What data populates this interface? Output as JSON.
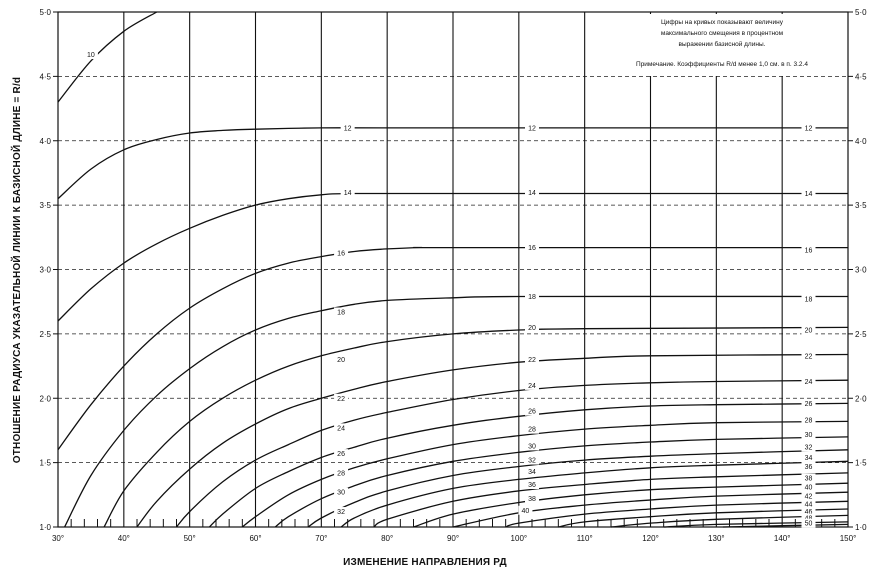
{
  "chart_data": {
    "type": "line",
    "xlabel": "ИЗМЕНЕНИЕ НАПРАВЛЕНИЯ РД",
    "ylabel": "ОТНОШЕНИЕ РАДИУСА УКАЗАТЕЛЬНОЙ ЛИНИИ К БАЗИСНОЙ ДЛИНЕ = R/d",
    "xlim": [
      30,
      150
    ],
    "ylim": [
      1.0,
      5.0
    ],
    "x_ticks": [
      30,
      40,
      50,
      60,
      70,
      80,
      90,
      100,
      110,
      120,
      130,
      140,
      150
    ],
    "x_tick_labels": [
      "30°",
      "40°",
      "50°",
      "60°",
      "70°",
      "80°",
      "90°",
      "100°",
      "110°",
      "120°",
      "130°",
      "140°",
      "150°"
    ],
    "y_ticks": [
      1.0,
      1.5,
      2.0,
      2.5,
      3.0,
      3.5,
      4.0,
      4.5,
      5.0
    ],
    "y_tick_labels_left": [
      "1·0",
      "1·5",
      "2·0",
      "2·5",
      "3·0",
      "3·5",
      "4·0",
      "4·5",
      "5·0"
    ],
    "y_tick_labels_right": [
      "1·0",
      "1·5",
      "2·0",
      "2·5",
      "3·0",
      "3·5",
      "4·0",
      "4·5",
      "5·0"
    ],
    "grid": true,
    "notes": [
      "Цифры на кривых показывают величину",
      "максимального смещения в процентном",
      "выражении базисной длины.",
      "Примечание. Коэффициенты R/d менее 1,0 см. в п. 3.2.4"
    ],
    "series": [
      {
        "name": "10",
        "x": [
          30,
          35,
          40,
          45
        ],
        "y": [
          4.3,
          4.62,
          4.85,
          5.0
        ],
        "labels": [
          {
            "x": 35,
            "y": 4.67
          }
        ]
      },
      {
        "name": "12",
        "x": [
          30,
          35,
          40,
          45,
          50,
          55,
          60,
          70,
          80,
          100,
          120,
          150
        ],
        "y": [
          3.55,
          3.78,
          3.93,
          4.01,
          4.06,
          4.08,
          4.09,
          4.1,
          4.1,
          4.1,
          4.1,
          4.1
        ],
        "labels": [
          {
            "x": 74,
            "y": 4.1
          },
          {
            "x": 102,
            "y": 4.1
          },
          {
            "x": 144,
            "y": 4.1
          }
        ]
      },
      {
        "name": "14",
        "x": [
          30,
          35,
          40,
          45,
          50,
          55,
          60,
          65,
          70,
          75,
          100,
          150
        ],
        "y": [
          2.6,
          2.85,
          3.05,
          3.2,
          3.32,
          3.42,
          3.5,
          3.55,
          3.58,
          3.59,
          3.59,
          3.59
        ],
        "labels": [
          {
            "x": 74,
            "y": 3.6
          },
          {
            "x": 102,
            "y": 3.6
          },
          {
            "x": 144,
            "y": 3.59
          }
        ]
      },
      {
        "name": "16",
        "x": [
          30,
          35,
          40,
          45,
          50,
          55,
          60,
          65,
          70,
          75,
          80,
          85,
          90,
          150
        ],
        "y": [
          1.6,
          1.95,
          2.25,
          2.5,
          2.7,
          2.85,
          2.97,
          3.05,
          3.1,
          3.14,
          3.16,
          3.17,
          3.17,
          3.17
        ],
        "labels": [
          {
            "x": 73,
            "y": 3.13
          },
          {
            "x": 102,
            "y": 3.17
          },
          {
            "x": 144,
            "y": 3.15
          }
        ]
      },
      {
        "name": "18",
        "x": [
          31,
          35,
          40,
          45,
          50,
          55,
          60,
          65,
          70,
          75,
          80,
          90,
          100,
          150
        ],
        "y": [
          1.0,
          1.4,
          1.75,
          2.02,
          2.23,
          2.4,
          2.53,
          2.62,
          2.68,
          2.73,
          2.76,
          2.78,
          2.79,
          2.79
        ],
        "labels": [
          {
            "x": 73,
            "y": 2.67
          },
          {
            "x": 102,
            "y": 2.79
          },
          {
            "x": 144,
            "y": 2.77
          }
        ]
      },
      {
        "name": "20",
        "x": [
          37,
          40,
          45,
          50,
          55,
          60,
          65,
          70,
          75,
          80,
          90,
          100,
          110,
          150
        ],
        "y": [
          1.0,
          1.28,
          1.58,
          1.82,
          2.0,
          2.14,
          2.25,
          2.33,
          2.39,
          2.44,
          2.5,
          2.53,
          2.54,
          2.55
        ],
        "labels": [
          {
            "x": 73,
            "y": 2.3
          },
          {
            "x": 102,
            "y": 2.55
          },
          {
            "x": 144,
            "y": 2.53
          }
        ]
      },
      {
        "name": "22",
        "x": [
          42,
          45,
          50,
          55,
          60,
          65,
          70,
          75,
          80,
          90,
          100,
          110,
          120,
          150
        ],
        "y": [
          1.0,
          1.2,
          1.45,
          1.65,
          1.8,
          1.92,
          2.0,
          2.07,
          2.13,
          2.22,
          2.28,
          2.31,
          2.33,
          2.34
        ],
        "labels": [
          {
            "x": 73,
            "y": 2.0
          },
          {
            "x": 102,
            "y": 2.3
          },
          {
            "x": 144,
            "y": 2.33
          }
        ]
      },
      {
        "name": "24",
        "x": [
          48,
          50,
          55,
          60,
          65,
          70,
          75,
          80,
          90,
          100,
          110,
          120,
          130,
          150
        ],
        "y": [
          1.0,
          1.12,
          1.35,
          1.52,
          1.64,
          1.75,
          1.83,
          1.89,
          1.99,
          2.06,
          2.1,
          2.12,
          2.13,
          2.14
        ],
        "labels": [
          {
            "x": 73,
            "y": 1.77
          },
          {
            "x": 102,
            "y": 2.1
          },
          {
            "x": 144,
            "y": 2.13
          }
        ]
      },
      {
        "name": "26",
        "x": [
          53,
          55,
          60,
          65,
          70,
          75,
          80,
          90,
          100,
          110,
          120,
          130,
          150
        ],
        "y": [
          1.0,
          1.1,
          1.3,
          1.43,
          1.54,
          1.62,
          1.69,
          1.79,
          1.86,
          1.91,
          1.94,
          1.95,
          1.96
        ],
        "labels": [
          {
            "x": 73,
            "y": 1.57
          },
          {
            "x": 102,
            "y": 1.9
          },
          {
            "x": 144,
            "y": 1.96
          }
        ]
      },
      {
        "name": "28",
        "x": [
          58,
          60,
          65,
          70,
          75,
          80,
          90,
          100,
          110,
          120,
          130,
          150
        ],
        "y": [
          1.0,
          1.08,
          1.25,
          1.37,
          1.46,
          1.53,
          1.64,
          1.71,
          1.76,
          1.79,
          1.81,
          1.82
        ],
        "labels": [
          {
            "x": 73,
            "y": 1.42
          },
          {
            "x": 102,
            "y": 1.76
          },
          {
            "x": 144,
            "y": 1.83
          }
        ]
      },
      {
        "name": "30",
        "x": [
          63,
          65,
          70,
          75,
          80,
          90,
          100,
          110,
          120,
          130,
          150
        ],
        "y": [
          1.0,
          1.08,
          1.22,
          1.32,
          1.4,
          1.51,
          1.58,
          1.63,
          1.66,
          1.68,
          1.7
        ],
        "labels": [
          {
            "x": 73,
            "y": 1.27
          },
          {
            "x": 102,
            "y": 1.63
          },
          {
            "x": 144,
            "y": 1.72
          }
        ]
      },
      {
        "name": "32",
        "x": [
          68,
          70,
          75,
          80,
          90,
          100,
          110,
          120,
          130,
          150
        ],
        "y": [
          1.0,
          1.07,
          1.19,
          1.28,
          1.4,
          1.47,
          1.52,
          1.55,
          1.57,
          1.6
        ],
        "labels": [
          {
            "x": 73,
            "y": 1.12
          },
          {
            "x": 102,
            "y": 1.52
          },
          {
            "x": 144,
            "y": 1.62
          }
        ]
      },
      {
        "name": "34",
        "x": [
          73,
          75,
          80,
          90,
          100,
          110,
          120,
          130,
          150
        ],
        "y": [
          1.0,
          1.07,
          1.17,
          1.3,
          1.37,
          1.42,
          1.46,
          1.48,
          1.51
        ],
        "labels": [
          {
            "x": 102,
            "y": 1.43
          },
          {
            "x": 144,
            "y": 1.54
          }
        ]
      },
      {
        "name": "36",
        "x": [
          78,
          80,
          90,
          100,
          110,
          120,
          130,
          150
        ],
        "y": [
          1.0,
          1.06,
          1.2,
          1.28,
          1.33,
          1.37,
          1.39,
          1.42
        ],
        "labels": [
          {
            "x": 102,
            "y": 1.33
          },
          {
            "x": 144,
            "y": 1.47
          }
        ]
      },
      {
        "name": "38",
        "x": [
          84,
          90,
          100,
          110,
          120,
          130,
          150
        ],
        "y": [
          1.0,
          1.1,
          1.19,
          1.25,
          1.29,
          1.31,
          1.34
        ],
        "labels": [
          {
            "x": 102,
            "y": 1.22
          },
          {
            "x": 144,
            "y": 1.38
          }
        ]
      },
      {
        "name": "40",
        "x": [
          90,
          100,
          110,
          120,
          130,
          150
        ],
        "y": [
          1.0,
          1.11,
          1.17,
          1.21,
          1.24,
          1.27
        ],
        "labels": [
          {
            "x": 101,
            "y": 1.13
          },
          {
            "x": 144,
            "y": 1.31
          }
        ]
      },
      {
        "name": "42",
        "x": [
          98,
          100,
          110,
          120,
          130,
          150
        ],
        "y": [
          1.0,
          1.03,
          1.1,
          1.14,
          1.17,
          1.2
        ],
        "labels": [
          {
            "x": 144,
            "y": 1.24
          }
        ]
      },
      {
        "name": "44",
        "x": [
          106,
          110,
          120,
          130,
          150
        ],
        "y": [
          1.0,
          1.04,
          1.08,
          1.11,
          1.14
        ],
        "labels": [
          {
            "x": 144,
            "y": 1.18
          }
        ]
      },
      {
        "name": "46",
        "x": [
          114,
          120,
          130,
          150
        ],
        "y": [
          1.0,
          1.03,
          1.06,
          1.09
        ],
        "labels": [
          {
            "x": 144,
            "y": 1.12
          }
        ]
      },
      {
        "name": "48",
        "x": [
          122,
          130,
          150
        ],
        "y": [
          1.0,
          1.02,
          1.04
        ],
        "labels": [
          {
            "x": 144,
            "y": 1.07
          }
        ]
      },
      {
        "name": "50",
        "x": [
          131,
          140,
          150
        ],
        "y": [
          1.0,
          1.01,
          1.02
        ],
        "labels": [
          {
            "x": 144,
            "y": 1.03
          }
        ]
      }
    ]
  }
}
